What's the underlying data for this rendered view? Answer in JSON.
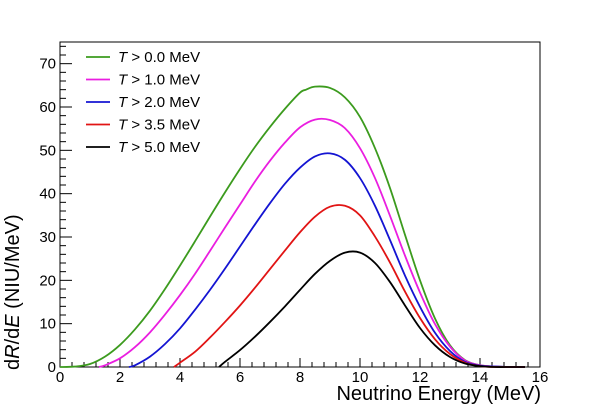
{
  "chart_data": {
    "type": "line",
    "title": "",
    "xlabel": "Neutrino Energy (MeV)",
    "ylabel": "dR/dE (NIU/MeV)",
    "ylabel_parts": {
      "d1": "d",
      "R": "R",
      "slash_d": "/d",
      "E": "E",
      "units": " (NIU/MeV)"
    },
    "xlim": [
      0,
      16
    ],
    "ylim": [
      0,
      75
    ],
    "xticks": [
      0,
      2,
      4,
      6,
      8,
      10,
      12,
      14,
      16
    ],
    "yticks": [
      0,
      10,
      20,
      30,
      40,
      50,
      60,
      70
    ],
    "xtick_labels": [
      "0",
      "2",
      "4",
      "6",
      "8",
      "10",
      "12",
      "14",
      "16"
    ],
    "ytick_labels": [
      "0",
      "10",
      "20",
      "30",
      "40",
      "50",
      "60",
      "70"
    ],
    "grid": false,
    "legend_position": "top-left",
    "series": [
      {
        "name": "T > 0.0 MeV",
        "var": "T",
        "rest": " > 0.0 MeV",
        "color": "#3c9b1e",
        "x": [
          0.0,
          0.5,
          1.0,
          1.5,
          2.0,
          2.5,
          3.0,
          3.5,
          4.0,
          4.5,
          5.0,
          5.5,
          6.0,
          6.5,
          7.0,
          7.5,
          8.0,
          8.2,
          8.5,
          9.0,
          9.5,
          10.0,
          10.5,
          11.0,
          11.5,
          12.0,
          12.5,
          13.0,
          13.5,
          14.0,
          14.5,
          15.0,
          15.5
        ],
        "y": [
          0.0,
          0.1,
          0.7,
          2.4,
          5.1,
          8.7,
          13.0,
          18.0,
          23.4,
          29.0,
          34.7,
          40.3,
          45.7,
          50.8,
          55.4,
          59.6,
          63.3,
          64.0,
          64.7,
          64.4,
          62.2,
          57.7,
          50.5,
          41.3,
          30.5,
          20.0,
          11.2,
          5.0,
          1.6,
          0.4,
          0.1,
          0.0,
          0.0
        ]
      },
      {
        "name": "T > 1.0 MeV",
        "var": "T",
        "rest": " > 1.0 MeV",
        "color": "#ea1ee0",
        "x": [
          1.3,
          1.5,
          2.0,
          2.5,
          3.0,
          3.5,
          4.0,
          4.5,
          5.0,
          5.5,
          6.0,
          6.5,
          7.0,
          7.5,
          8.0,
          8.5,
          9.0,
          9.5,
          10.0,
          10.5,
          11.0,
          11.5,
          12.0,
          12.5,
          13.0,
          13.5,
          14.0,
          14.5,
          15.0,
          15.5
        ],
        "y": [
          0.0,
          0.4,
          2.0,
          4.6,
          8.0,
          12.1,
          16.6,
          21.5,
          26.8,
          32.2,
          37.5,
          42.8,
          47.6,
          51.8,
          55.3,
          57.1,
          57.0,
          55.1,
          50.5,
          43.6,
          34.9,
          25.7,
          17.2,
          9.9,
          4.7,
          1.5,
          0.4,
          0.1,
          0.0,
          0.0
        ]
      },
      {
        "name": "T > 2.0 MeV",
        "var": "T",
        "rest": " > 2.0 MeV",
        "color": "#1414d2",
        "x": [
          2.3,
          2.5,
          3.0,
          3.5,
          4.0,
          4.5,
          5.0,
          5.5,
          6.0,
          6.5,
          7.0,
          7.5,
          8.0,
          8.5,
          9.0,
          9.5,
          10.0,
          10.5,
          11.0,
          11.5,
          12.0,
          12.5,
          13.0,
          13.5,
          14.0,
          14.5,
          15.0,
          15.5
        ],
        "y": [
          0.0,
          0.4,
          2.4,
          5.3,
          8.9,
          13.2,
          17.8,
          22.7,
          27.8,
          32.9,
          37.8,
          42.3,
          46.0,
          48.6,
          49.3,
          47.8,
          43.6,
          37.2,
          29.3,
          21.1,
          13.9,
          7.9,
          3.7,
          1.2,
          0.3,
          0.1,
          0.0,
          0.0
        ]
      },
      {
        "name": "T > 3.5 MeV",
        "var": "T",
        "rest": " > 3.5 MeV",
        "color": "#e11414",
        "x": [
          3.8,
          4.0,
          4.5,
          5.0,
          5.5,
          6.0,
          6.5,
          7.0,
          7.5,
          8.0,
          8.5,
          9.0,
          9.5,
          10.0,
          10.5,
          11.0,
          11.5,
          12.0,
          12.5,
          13.0,
          13.5,
          14.0,
          14.5,
          15.0,
          15.5
        ],
        "y": [
          0.0,
          1.0,
          3.5,
          6.8,
          10.4,
          14.2,
          18.3,
          22.6,
          26.9,
          31.1,
          34.7,
          37.0,
          37.2,
          35.0,
          30.1,
          24.1,
          17.4,
          11.3,
          6.4,
          3.0,
          1.0,
          0.2,
          0.0,
          0.0,
          0.0
        ]
      },
      {
        "name": "T > 5.0 MeV",
        "var": "T",
        "rest": " > 5.0 MeV",
        "color": "#000000",
        "x": [
          5.3,
          5.5,
          6.0,
          6.5,
          7.0,
          7.5,
          8.0,
          8.5,
          9.0,
          9.5,
          10.0,
          10.5,
          11.0,
          11.5,
          12.0,
          12.5,
          13.0,
          13.5,
          14.0,
          14.5,
          15.0,
          15.5
        ],
        "y": [
          0.0,
          1.2,
          3.9,
          7.0,
          10.4,
          14.0,
          17.8,
          21.5,
          24.5,
          26.4,
          26.4,
          24.0,
          19.6,
          14.2,
          9.0,
          5.0,
          2.3,
          0.8,
          0.2,
          0.0,
          0.0,
          0.0
        ]
      }
    ]
  }
}
